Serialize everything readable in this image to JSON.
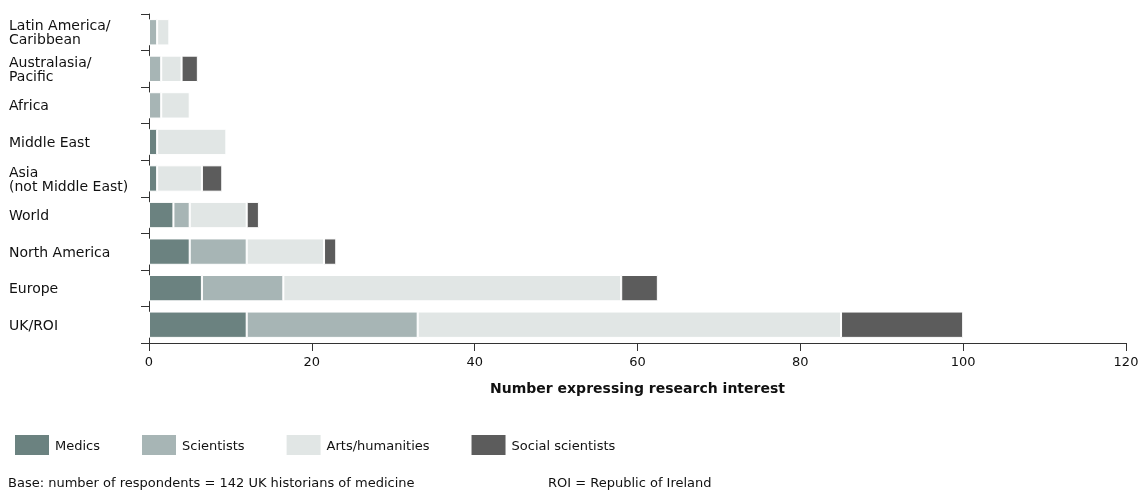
{
  "chart_data": {
    "type": "bar",
    "orientation": "horizontal",
    "stacked": true,
    "categories": [
      "Latin America/\nCaribbean",
      "Australasia/\nPacific",
      "Africa",
      "Middle East",
      "Asia\n(not Middle East)",
      "World",
      "North America",
      "Europe",
      "UK/ROI"
    ],
    "series": [
      {
        "name": "Medics",
        "color": "#6b8280",
        "values": [
          null,
          null,
          null,
          1,
          1,
          3,
          5,
          6.5,
          12
        ]
      },
      {
        "name": "Scientists",
        "color": "#a7b5b5",
        "values": [
          1,
          1.5,
          1.5,
          null,
          null,
          2,
          7,
          10,
          21
        ]
      },
      {
        "name": "Arts/humanities",
        "color": "#e1e6e5",
        "values": [
          1.5,
          2.5,
          3.5,
          8.5,
          5.5,
          7,
          9.5,
          41.5,
          52
        ]
      },
      {
        "name": "Social scientists",
        "color": "#5c5c5c",
        "values": [
          null,
          2,
          null,
          null,
          2.5,
          1.5,
          1.5,
          4.5,
          15
        ]
      }
    ],
    "xlim": [
      0,
      120
    ],
    "xticks": [
      0,
      20,
      40,
      60,
      80,
      100,
      120
    ],
    "xlabel": "Number expressing research interest",
    "legend": "bottom left",
    "grid": false,
    "annotations": [
      "Base: number of respondents = 142 UK historians of medicine",
      "ROI = Republic of Ireland"
    ]
  }
}
